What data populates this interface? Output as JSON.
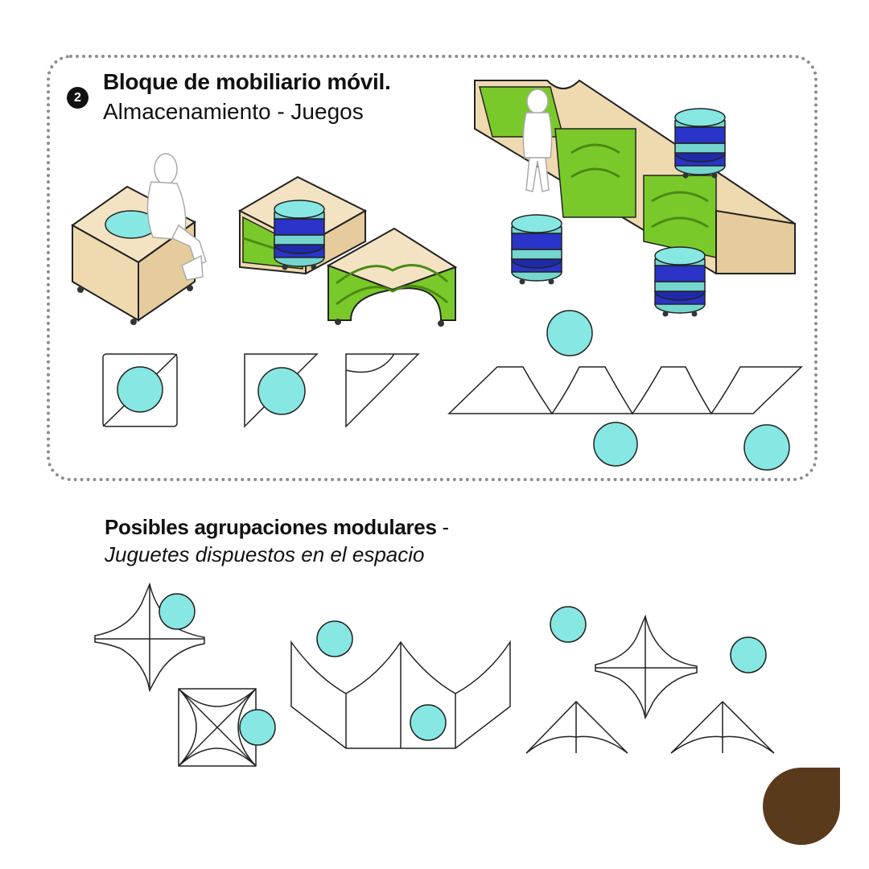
{
  "block": {
    "number": "2",
    "title": "Bloque de mobiliario móvil.",
    "subtitle": "Almacenamiento - Juegos"
  },
  "groupings": {
    "title": "Posibles agrupaciones modulares",
    "separator": " -",
    "caption": "Juguetes dispuestos en el espacio"
  },
  "colors": {
    "panel_border": "#8d8d8d",
    "seat_cyan": "#86e7e3",
    "wood": "#f1ddb8",
    "shelf_green": "#7ac92a",
    "stool_blue": "#2a34c8",
    "outline": "#222222",
    "leaf_brown": "#5a3a1d"
  },
  "icons": {
    "child_figure": "child-figure-icon",
    "stool": "stool-icon",
    "leaf": "leaf-logo-icon"
  }
}
